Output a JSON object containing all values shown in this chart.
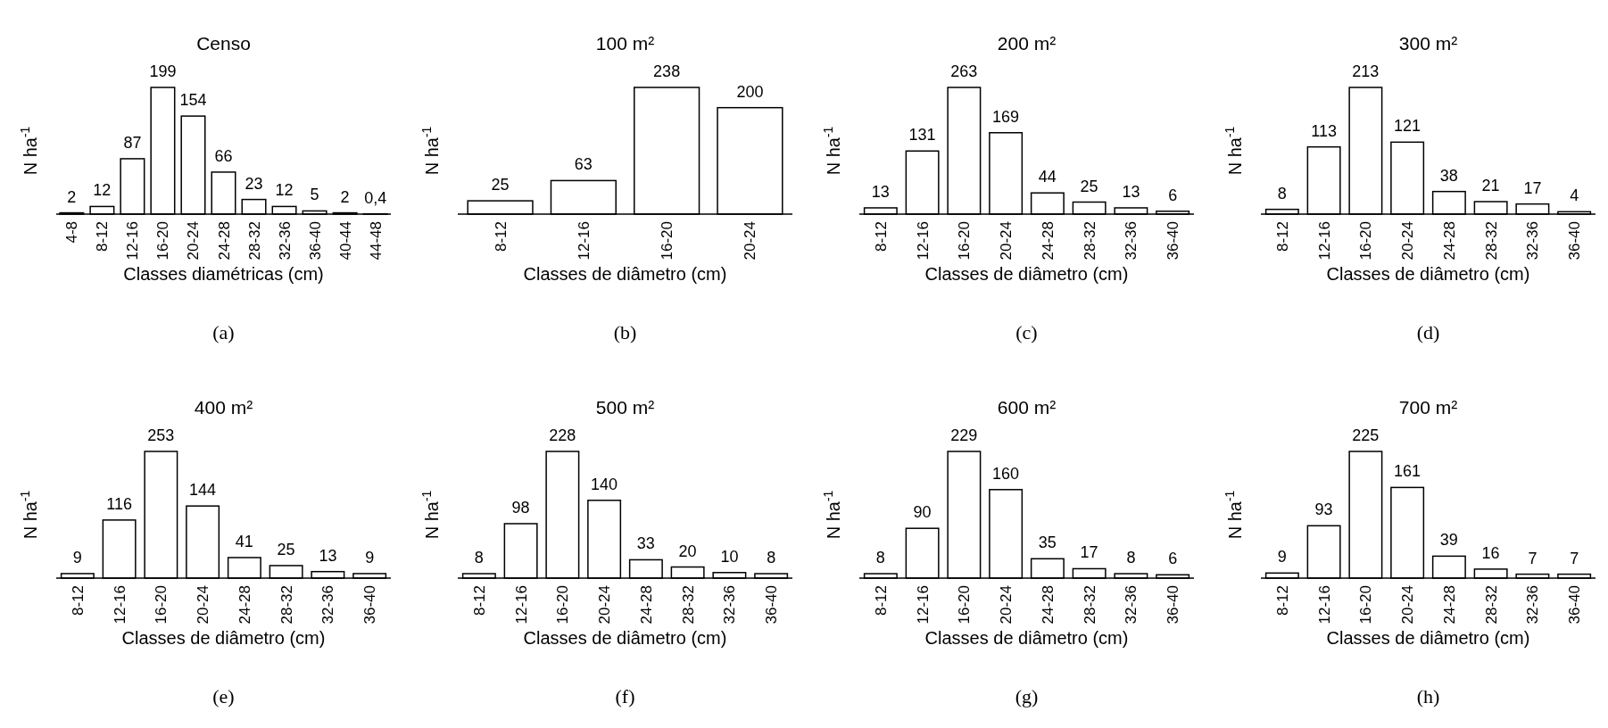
{
  "chart_data": [
    {
      "type": "bar",
      "title": "Censo",
      "xlabel": "Classes diamétricas (cm)",
      "ylabel": "N ha$^{-1}$",
      "categories": [
        "4-8",
        "8-12",
        "12-16",
        "16-20",
        "20-24",
        "24-28",
        "28-32",
        "32-36",
        "36-40",
        "40-44",
        "44-48"
      ],
      "values": [
        2,
        12,
        87,
        199,
        154,
        66,
        23,
        12,
        5,
        2,
        0.4
      ],
      "value_labels": [
        "2",
        "12",
        "87",
        "199",
        "154",
        "66",
        "23",
        "12",
        "5",
        "2",
        "0,4"
      ],
      "color": "#ffffff",
      "annotations": [
        "(a)"
      ]
    },
    {
      "type": "bar",
      "title": "100 m²",
      "xlabel": "Classes de diâmetro (cm)",
      "ylabel": "N ha$^{-1}$",
      "categories": [
        "8-12",
        "12-16",
        "16-20",
        "20-24"
      ],
      "values": [
        25,
        63,
        238,
        200
      ],
      "color": "#ffffff",
      "data_labels": true,
      "annotations": [
        "(b)"
      ]
    },
    {
      "type": "bar",
      "title": "200 m²",
      "xlabel": "Classes de diâmetro (cm)",
      "ylabel": "N ha$^{-1}$",
      "categories": [
        "8-12",
        "12-16",
        "16-20",
        "20-24",
        "24-28",
        "28-32",
        "32-36",
        "36-40"
      ],
      "values": [
        13,
        131,
        263,
        169,
        44,
        25,
        13,
        6
      ],
      "color": "#ffffff",
      "data_labels": true,
      "annotations": [
        "(c)"
      ]
    },
    {
      "type": "bar",
      "title": "300 m²",
      "xlabel": "Classes de diâmetro (cm)",
      "ylabel": "N ha$^{-1}$",
      "categories": [
        "8-12",
        "12-16",
        "16-20",
        "20-24",
        "24-28",
        "28-32",
        "32-36",
        "36-40"
      ],
      "values": [
        8,
        113,
        213,
        121,
        38,
        21,
        17,
        4
      ],
      "color": "#ffffff",
      "data_labels": true,
      "annotations": [
        "(d)"
      ]
    },
    {
      "type": "bar",
      "title": "400 m²",
      "xlabel": "Classes de diâmetro (cm)",
      "ylabel": "N ha$^{-1}$",
      "categories": [
        "8-12",
        "12-16",
        "16-20",
        "20-24",
        "24-28",
        "28-32",
        "32-36",
        "36-40"
      ],
      "values": [
        9,
        116,
        253,
        144,
        41,
        25,
        13,
        9
      ],
      "color": "#ffffff",
      "data_labels": true,
      "annotations": [
        "(e)"
      ]
    },
    {
      "type": "bar",
      "title": "500 m²",
      "xlabel": "Classes de diâmetro (cm)",
      "ylabel": "N ha$^{-1}$",
      "categories": [
        "8-12",
        "12-16",
        "16-20",
        "20-24",
        "24-28",
        "28-32",
        "32-36",
        "36-40"
      ],
      "values": [
        8,
        98,
        228,
        140,
        33,
        20,
        10,
        8
      ],
      "color": "#ffffff",
      "data_labels": true,
      "annotations": [
        "(f)"
      ]
    },
    {
      "type": "bar",
      "title": "600 m²",
      "xlabel": "Classes de diâmetro (cm)",
      "ylabel": "N ha$^{-1}$",
      "categories": [
        "8-12",
        "12-16",
        "16-20",
        "20-24",
        "24-28",
        "28-32",
        "32-36",
        "36-40"
      ],
      "values": [
        8,
        90,
        229,
        160,
        35,
        17,
        8,
        6
      ],
      "color": "#ffffff",
      "data_labels": true,
      "annotations": [
        "(g)"
      ]
    },
    {
      "type": "bar",
      "title": "700 m²",
      "xlabel": "Classes de diâmetro (cm)",
      "ylabel": "N ha$^{-1}$",
      "categories": [
        "8-12",
        "12-16",
        "16-20",
        "20-24",
        "24-28",
        "28-32",
        "32-36",
        "36-40"
      ],
      "values": [
        9,
        93,
        225,
        161,
        39,
        16,
        7,
        7
      ],
      "color": "#ffffff",
      "data_labels": true,
      "annotations": [
        "(h)"
      ]
    }
  ]
}
